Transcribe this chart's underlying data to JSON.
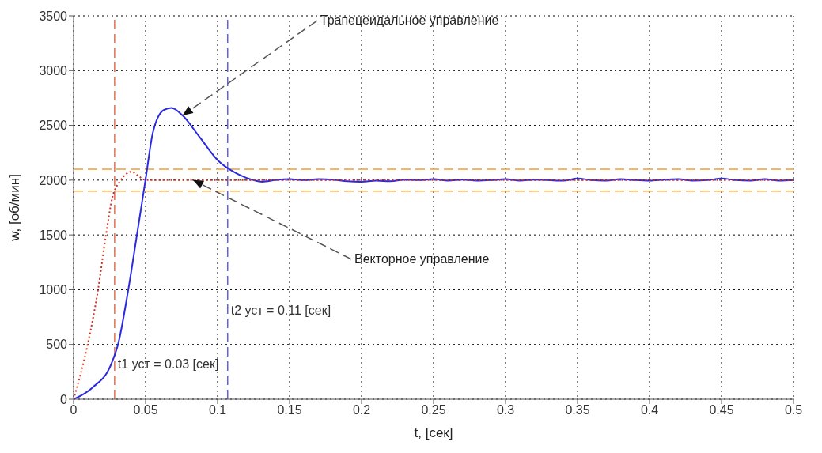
{
  "chart_data": {
    "type": "line",
    "xlabel": "t, [сек]",
    "ylabel": "w, [об/мин]",
    "xlim": [
      0,
      0.5
    ],
    "xticks": [
      0,
      0.05,
      0.1,
      0.15,
      0.2,
      0.25,
      0.3,
      0.35,
      0.4,
      0.45,
      0.5
    ],
    "ylim": [
      0,
      3500
    ],
    "yticks": [
      0,
      500,
      1000,
      1500,
      2000,
      2500,
      3000,
      3500
    ],
    "grid": true,
    "marker": "none",
    "series": [
      {
        "color": "#2a2ae0",
        "line_style": "solid",
        "x": [
          0,
          0.013,
          0.026,
          0.031,
          0.038,
          0.044,
          0.05,
          0.055,
          0.0626,
          0.068,
          0.0757,
          0.0867,
          0.101,
          0.114,
          0.125,
          0.131,
          0.14,
          0.15,
          0.16,
          0.17,
          0.18,
          0.19,
          0.2,
          0.21,
          0.22,
          0.23,
          0.24,
          0.25,
          0.26,
          0.27,
          0.28,
          0.29,
          0.3,
          0.31,
          0.32,
          0.33,
          0.34,
          0.35,
          0.36,
          0.37,
          0.38,
          0.39,
          0.4,
          0.41,
          0.42,
          0.43,
          0.44,
          0.45,
          0.46,
          0.47,
          0.48,
          0.49,
          0.5
        ],
        "values": [
          0,
          105,
          317,
          507,
          1000,
          1500,
          2007,
          2430,
          2640,
          2660,
          2590,
          2408,
          2170,
          2056,
          2000,
          1985,
          2000,
          2010,
          2000,
          2010,
          2005,
          1990,
          1985,
          1995,
          1990,
          2005,
          2000,
          2010,
          1995,
          2005,
          1995,
          2000,
          2010,
          1995,
          2005,
          2000,
          1995,
          2015,
          2000,
          1995,
          2010,
          2000,
          1995,
          2005,
          2010,
          1995,
          2000,
          2015,
          2000,
          1995,
          2010,
          1995,
          2000
        ]
      },
      {
        "color": "#d03020",
        "line_style": "dotted",
        "x": [
          0,
          0.0099,
          0.017,
          0.0225,
          0.027,
          0.032,
          0.036,
          0.04,
          0.046,
          0.05,
          0.1,
          0.2,
          0.3,
          0.4,
          0.5
        ],
        "values": [
          0,
          507,
          1000,
          1500,
          1845,
          1985,
          2050,
          2077,
          2028,
          2000,
          2000,
          2000,
          2000,
          2000,
          2000
        ]
      }
    ],
    "ref_lines": [
      {
        "axis": "y",
        "value": 2100,
        "color": "#f0a030",
        "line_style": "dashed"
      },
      {
        "axis": "y",
        "value": 1900,
        "color": "#f0a030",
        "line_style": "dashed"
      },
      {
        "axis": "x",
        "value": 0.0285,
        "label": "t1 уст = 0.03 [сек]",
        "color": "#e07050",
        "line_style": "dashed"
      },
      {
        "axis": "x",
        "value": 0.107,
        "label": "t2 уст = 0.11 [сек]",
        "color": "#6060e0",
        "line_style": "dashed"
      }
    ],
    "annotations": [
      {
        "text": "Трапецеидальное управление",
        "x": 0.0757,
        "y": 2590
      },
      {
        "text": "Векторное управление",
        "x": 0.083,
        "y": 2000
      }
    ]
  }
}
